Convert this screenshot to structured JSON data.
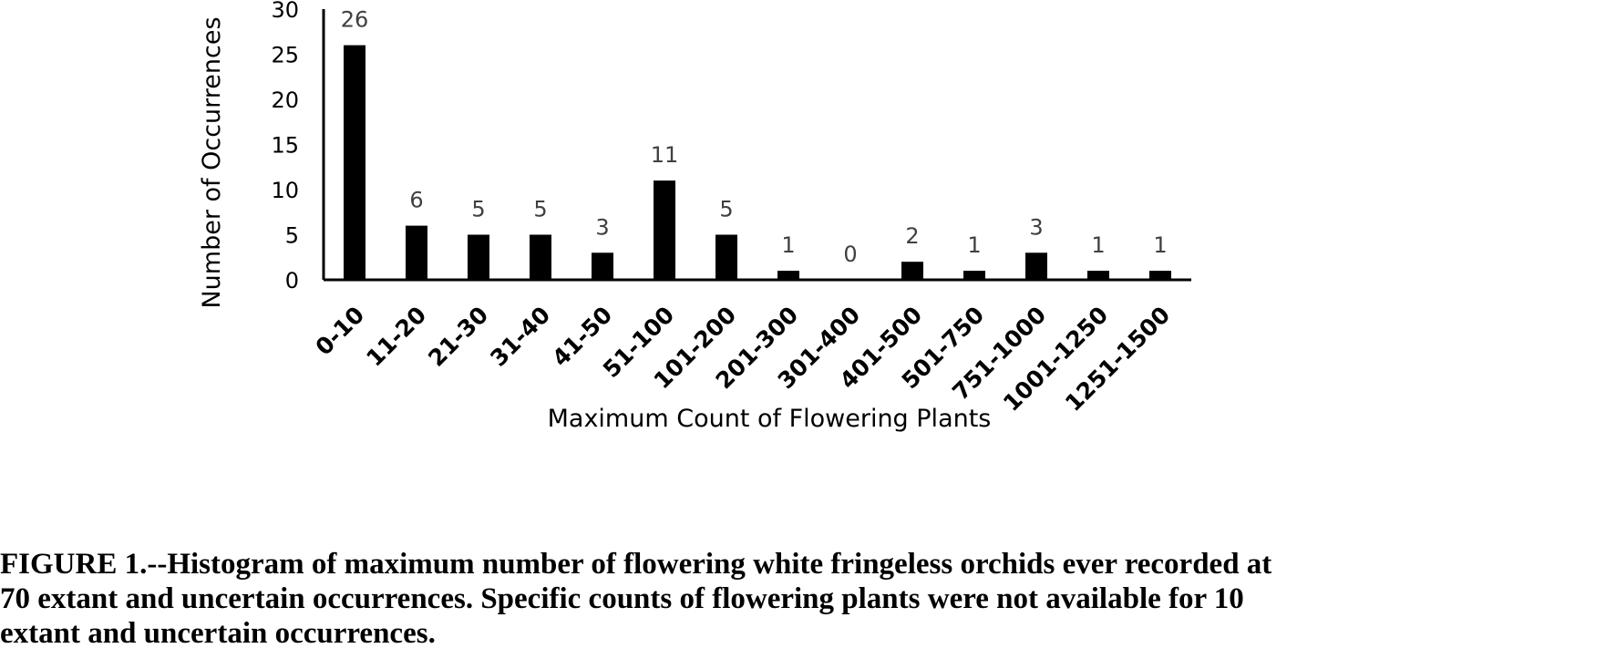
{
  "chart_data": {
    "type": "bar",
    "categories": [
      "0-10",
      "11-20",
      "21-30",
      "31-40",
      "41-50",
      "51-100",
      "101-200",
      "201-300",
      "301-400",
      "401-500",
      "501-750",
      "751-1000",
      "1001-1250",
      "1251-1500"
    ],
    "values": [
      26,
      6,
      5,
      5,
      3,
      11,
      5,
      1,
      0,
      2,
      1,
      3,
      1,
      1
    ],
    "data_labels": [
      "26",
      "6",
      "5",
      "5",
      "3",
      "11",
      "5",
      "1",
      "0",
      "2",
      "1",
      "3",
      "1",
      "1"
    ],
    "title": "",
    "xlabel": "Maximum Count of Flowering Plants",
    "ylabel": "Number of Occurrences",
    "ylim": [
      0,
      30
    ],
    "yticks": [
      0,
      5,
      10,
      15,
      20,
      25,
      30
    ],
    "grid": false,
    "legend": "none",
    "bar_color": "#000000",
    "label_color": "#404040"
  },
  "caption": {
    "lines": [
      "FIGURE 1.--Histogram of maximum number of flowering white fringeless orchids ever recorded at",
      "70 extant and uncertain occurrences.  Specific counts of flowering plants were not available for 10",
      "extant and uncertain occurrences."
    ]
  }
}
